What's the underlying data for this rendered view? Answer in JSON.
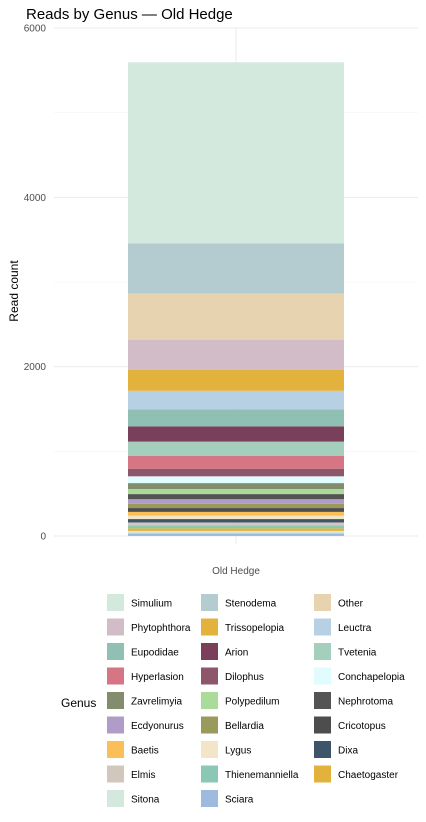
{
  "chart_data": {
    "type": "bar",
    "stacked": true,
    "title": "Reads by Genus — Old Hedge",
    "xlabel": "",
    "ylabel": "Read count",
    "categories": [
      "Old Hedge"
    ],
    "ylim": [
      0,
      6000
    ],
    "yticks": [
      0,
      2000,
      4000,
      6000
    ],
    "grid": true,
    "legend_title": "Genus",
    "legend_position": "bottom",
    "series": [
      {
        "name": "Simulium",
        "color": "#d4e9dd",
        "values": [
          2140
        ]
      },
      {
        "name": "Stenodema",
        "color": "#b4cccf",
        "values": [
          590
        ]
      },
      {
        "name": "Other",
        "color": "#e8d3b0",
        "values": [
          550
        ]
      },
      {
        "name": "Phytophthora",
        "color": "#d2bcc8",
        "values": [
          350
        ]
      },
      {
        "name": "Trissopelopia",
        "color": "#e3b23c",
        "values": [
          250
        ]
      },
      {
        "name": "Leuctra",
        "color": "#b8d0e4",
        "values": [
          220
        ]
      },
      {
        "name": "Eupodidae",
        "color": "#8fc0b3",
        "values": [
          200
        ]
      },
      {
        "name": "Arion",
        "color": "#7a3f5a",
        "values": [
          180
        ]
      },
      {
        "name": "Tvetenia",
        "color": "#a4cfbc",
        "values": [
          170
        ]
      },
      {
        "name": "Hyperlasion",
        "color": "#d67583",
        "values": [
          150
        ]
      },
      {
        "name": "Dilophus",
        "color": "#8c566b",
        "values": [
          90
        ]
      },
      {
        "name": "Conchapelopia",
        "color": "#e0fcff",
        "values": [
          80
        ]
      },
      {
        "name": "Zavrelimyia",
        "color": "#838d6d",
        "values": [
          70
        ]
      },
      {
        "name": "Polypedilum",
        "color": "#abdb99",
        "values": [
          60
        ]
      },
      {
        "name": "Nephrotoma",
        "color": "#545454",
        "values": [
          60
        ]
      },
      {
        "name": "Ecdyonurus",
        "color": "#b19cc7",
        "values": [
          55
        ]
      },
      {
        "name": "Bellardia",
        "color": "#999a5c",
        "values": [
          50
        ]
      },
      {
        "name": "Cricotopus",
        "color": "#4d4d4d",
        "values": [
          45
        ]
      },
      {
        "name": "Baetis",
        "color": "#fbbf57",
        "values": [
          45
        ]
      },
      {
        "name": "Lygus",
        "color": "#f3e6c8",
        "values": [
          40
        ]
      },
      {
        "name": "Dixa",
        "color": "#3e5468",
        "values": [
          40
        ]
      },
      {
        "name": "Elmis",
        "color": "#d1c7bd",
        "values": [
          35
        ]
      },
      {
        "name": "Thienemanniella",
        "color": "#8bc7b5",
        "values": [
          35
        ]
      },
      {
        "name": "Chaetogaster",
        "color": "#e3b23c",
        "values": [
          30
        ]
      },
      {
        "name": "Sitona",
        "color": "#d4e9dd",
        "values": [
          30
        ]
      },
      {
        "name": "Sciara",
        "color": "#9ebadf",
        "values": [
          30
        ]
      }
    ]
  }
}
